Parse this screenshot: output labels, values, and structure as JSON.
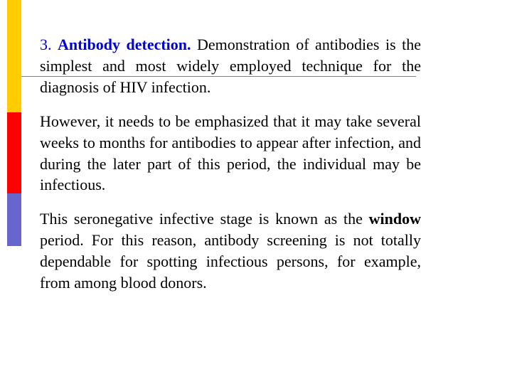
{
  "colors": {
    "yellow": "#ffcc00",
    "red": "#ff0000",
    "blue": "#6666cc",
    "hline": "#808080",
    "heading": "#0000d0",
    "body": "#000000"
  },
  "heading": {
    "number": "3.",
    "title": "Antibody detection."
  },
  "para1_rest": " Demonstration of antibodies is the simplest and most widely employed technique for the diagnosis of HIV infection.",
  "para2": "However, it needs to be emphasized that it may take several weeks to months for antibodies to appear after infection, and during the later part of this period, the individual may be infectious.",
  "para3": {
    "pre": "This seronegative infective stage is known as the ",
    "bold": "window",
    "post": " period. For this reason, antibody screening is not totally dependable for spotting infectious persons, for example, from among blood donors."
  }
}
